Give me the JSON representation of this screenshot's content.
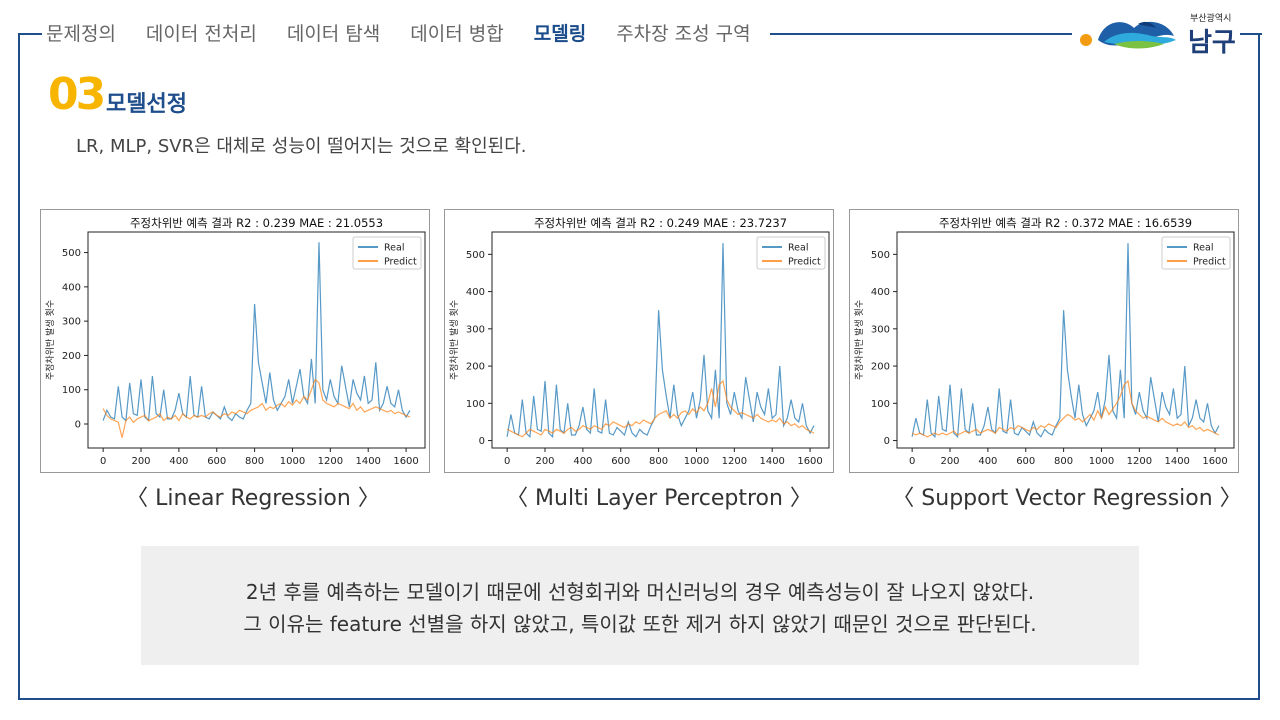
{
  "nav": {
    "items": [
      "문제정의",
      "데이터 전처리",
      "데이터 탐색",
      "데이터 병합",
      "모델링",
      "주차장 조성 구역"
    ],
    "active_index": 4
  },
  "logo": {
    "sub": "부산광역시",
    "main": "남구"
  },
  "section": {
    "number": "03",
    "title": "모델선정",
    "subtitle": "LR, MLP, SVR은 대체로 성능이 떨어지는 것으로 확인된다."
  },
  "colors": {
    "accent_blue": "#1f4e8c",
    "accent_yellow": "#f7b500",
    "real": "#1f77b4",
    "predict": "#ff7f0e"
  },
  "chart_data": [
    {
      "type": "line",
      "title": "주정차위반 예측 결과    R2 : 0.239    MAE : 21.0553",
      "ylabel": "주정차위반 발생 횟수",
      "xlabel": "",
      "caption": "〈 Linear Regression 〉",
      "xlim": [
        -80,
        1700
      ],
      "ylim": [
        -70,
        560
      ],
      "xticks": [
        0,
        200,
        400,
        600,
        800,
        1000,
        1200,
        1400,
        1600
      ],
      "yticks": [
        0,
        100,
        200,
        300,
        400,
        500
      ],
      "legend": [
        "Real",
        "Predict"
      ],
      "legend_position": "top-right",
      "series": [
        {
          "name": "Real",
          "x": [
            0,
            20,
            40,
            60,
            80,
            100,
            120,
            140,
            160,
            180,
            200,
            220,
            240,
            260,
            280,
            300,
            320,
            340,
            360,
            380,
            400,
            420,
            440,
            460,
            480,
            500,
            520,
            540,
            560,
            580,
            600,
            620,
            640,
            660,
            680,
            700,
            720,
            740,
            760,
            780,
            800,
            820,
            840,
            860,
            880,
            900,
            920,
            940,
            960,
            980,
            1000,
            1020,
            1040,
            1060,
            1080,
            1100,
            1120,
            1140,
            1160,
            1180,
            1200,
            1220,
            1240,
            1260,
            1280,
            1300,
            1320,
            1340,
            1360,
            1380,
            1400,
            1420,
            1440,
            1460,
            1480,
            1500,
            1520,
            1540,
            1560,
            1580,
            1600,
            1620
          ],
          "values": [
            10,
            40,
            20,
            15,
            110,
            20,
            10,
            120,
            30,
            25,
            130,
            20,
            10,
            140,
            30,
            20,
            100,
            15,
            15,
            40,
            90,
            30,
            20,
            140,
            25,
            20,
            110,
            20,
            15,
            35,
            25,
            15,
            50,
            20,
            10,
            30,
            20,
            15,
            40,
            60,
            350,
            180,
            120,
            60,
            150,
            70,
            40,
            60,
            80,
            130,
            60,
            110,
            160,
            80,
            60,
            190,
            60,
            530,
            100,
            70,
            130,
            80,
            60,
            170,
            110,
            50,
            130,
            90,
            70,
            140,
            60,
            70,
            180,
            40,
            60,
            110,
            60,
            50,
            100,
            40,
            20,
            40
          ]
        },
        {
          "name": "Predict",
          "x": [
            0,
            20,
            40,
            60,
            80,
            100,
            120,
            140,
            160,
            180,
            200,
            220,
            240,
            260,
            280,
            300,
            320,
            340,
            360,
            380,
            400,
            420,
            440,
            460,
            480,
            500,
            520,
            540,
            560,
            580,
            600,
            620,
            640,
            660,
            680,
            700,
            720,
            740,
            760,
            780,
            800,
            820,
            840,
            860,
            880,
            900,
            920,
            940,
            960,
            980,
            1000,
            1020,
            1040,
            1060,
            1080,
            1100,
            1120,
            1140,
            1160,
            1180,
            1200,
            1220,
            1240,
            1260,
            1280,
            1300,
            1320,
            1340,
            1360,
            1380,
            1400,
            1420,
            1440,
            1460,
            1480,
            1500,
            1520,
            1540,
            1560,
            1580,
            1600,
            1620
          ],
          "values": [
            45,
            25,
            15,
            10,
            5,
            -40,
            10,
            20,
            5,
            15,
            20,
            25,
            10,
            15,
            20,
            30,
            10,
            20,
            15,
            25,
            10,
            30,
            20,
            15,
            25,
            20,
            25,
            20,
            30,
            35,
            25,
            20,
            30,
            25,
            35,
            30,
            40,
            35,
            30,
            40,
            45,
            50,
            60,
            40,
            50,
            45,
            55,
            60,
            50,
            65,
            55,
            70,
            60,
            80,
            70,
            100,
            130,
            120,
            70,
            60,
            55,
            50,
            60,
            55,
            50,
            45,
            60,
            40,
            50,
            35,
            40,
            45,
            50,
            45,
            40,
            35,
            40,
            30,
            35,
            30,
            25,
            20
          ]
        }
      ]
    },
    {
      "type": "line",
      "title": "주정차위반 예측 결과    R2 : 0.249    MAE : 23.7237",
      "ylabel": "주정차위반 발생 횟수",
      "xlabel": "",
      "caption": "〈 Multi Layer Perceptron 〉",
      "xlim": [
        -80,
        1700
      ],
      "ylim": [
        -20,
        560
      ],
      "xticks": [
        0,
        200,
        400,
        600,
        800,
        1000,
        1200,
        1400,
        1600
      ],
      "yticks": [
        0,
        100,
        200,
        300,
        400,
        500
      ],
      "legend": [
        "Real",
        "Predict"
      ],
      "legend_position": "top-right",
      "series": [
        {
          "name": "Real",
          "x": [
            0,
            20,
            40,
            60,
            80,
            100,
            120,
            140,
            160,
            180,
            200,
            220,
            240,
            260,
            280,
            300,
            320,
            340,
            360,
            380,
            400,
            420,
            440,
            460,
            480,
            500,
            520,
            540,
            560,
            580,
            600,
            620,
            640,
            660,
            680,
            700,
            720,
            740,
            760,
            780,
            800,
            820,
            840,
            860,
            880,
            900,
            920,
            940,
            960,
            980,
            1000,
            1020,
            1040,
            1060,
            1080,
            1100,
            1120,
            1140,
            1160,
            1180,
            1200,
            1220,
            1240,
            1260,
            1280,
            1300,
            1320,
            1340,
            1360,
            1380,
            1400,
            1420,
            1440,
            1460,
            1480,
            1500,
            1520,
            1540,
            1560,
            1580,
            1600,
            1620
          ],
          "values": [
            10,
            70,
            20,
            15,
            110,
            20,
            10,
            120,
            30,
            25,
            160,
            20,
            10,
            150,
            30,
            20,
            100,
            15,
            15,
            40,
            90,
            30,
            20,
            140,
            25,
            20,
            110,
            20,
            15,
            35,
            25,
            15,
            50,
            20,
            10,
            30,
            20,
            15,
            40,
            60,
            350,
            190,
            120,
            60,
            150,
            70,
            40,
            60,
            80,
            130,
            60,
            110,
            230,
            80,
            60,
            190,
            60,
            530,
            100,
            70,
            130,
            80,
            60,
            170,
            110,
            50,
            130,
            90,
            70,
            140,
            60,
            70,
            200,
            40,
            60,
            110,
            60,
            50,
            100,
            40,
            20,
            40
          ]
        },
        {
          "name": "Predict",
          "x": [
            0,
            20,
            40,
            60,
            80,
            100,
            120,
            140,
            160,
            180,
            200,
            220,
            240,
            260,
            280,
            300,
            320,
            340,
            360,
            380,
            400,
            420,
            440,
            460,
            480,
            500,
            520,
            540,
            560,
            580,
            600,
            620,
            640,
            660,
            680,
            700,
            720,
            740,
            760,
            780,
            800,
            820,
            840,
            860,
            880,
            900,
            920,
            940,
            960,
            980,
            1000,
            1020,
            1040,
            1060,
            1080,
            1100,
            1120,
            1140,
            1160,
            1180,
            1200,
            1220,
            1240,
            1260,
            1280,
            1300,
            1320,
            1340,
            1360,
            1380,
            1400,
            1420,
            1440,
            1460,
            1480,
            1500,
            1520,
            1540,
            1560,
            1580,
            1600,
            1620
          ],
          "values": [
            30,
            25,
            20,
            15,
            10,
            20,
            30,
            25,
            20,
            15,
            30,
            25,
            20,
            30,
            25,
            20,
            30,
            35,
            25,
            30,
            40,
            35,
            30,
            40,
            35,
            30,
            45,
            40,
            50,
            45,
            40,
            35,
            45,
            40,
            50,
            45,
            55,
            50,
            45,
            60,
            70,
            75,
            80,
            60,
            70,
            60,
            75,
            80,
            70,
            85,
            75,
            90,
            80,
            100,
            140,
            90,
            150,
            160,
            110,
            90,
            80,
            70,
            75,
            70,
            65,
            60,
            70,
            60,
            55,
            50,
            55,
            50,
            60,
            45,
            50,
            40,
            45,
            35,
            40,
            30,
            25,
            20
          ]
        }
      ]
    },
    {
      "type": "line",
      "title": "주정차위반 예측 결과    R2 : 0.372    MAE : 16.6539",
      "ylabel": "주정차위반 발생 횟수",
      "xlabel": "",
      "caption": "〈 Support Vector Regression 〉",
      "xlim": [
        -80,
        1700
      ],
      "ylim": [
        -20,
        560
      ],
      "xticks": [
        0,
        200,
        400,
        600,
        800,
        1000,
        1200,
        1400,
        1600
      ],
      "yticks": [
        0,
        100,
        200,
        300,
        400,
        500
      ],
      "legend": [
        "Real",
        "Predict"
      ],
      "legend_position": "top-right",
      "series": [
        {
          "name": "Real",
          "x": [
            0,
            20,
            40,
            60,
            80,
            100,
            120,
            140,
            160,
            180,
            200,
            220,
            240,
            260,
            280,
            300,
            320,
            340,
            360,
            380,
            400,
            420,
            440,
            460,
            480,
            500,
            520,
            540,
            560,
            580,
            600,
            620,
            640,
            660,
            680,
            700,
            720,
            740,
            760,
            780,
            800,
            820,
            840,
            860,
            880,
            900,
            920,
            940,
            960,
            980,
            1000,
            1020,
            1040,
            1060,
            1080,
            1100,
            1120,
            1140,
            1160,
            1180,
            1200,
            1220,
            1240,
            1260,
            1280,
            1300,
            1320,
            1340,
            1360,
            1380,
            1400,
            1420,
            1440,
            1460,
            1480,
            1500,
            1520,
            1540,
            1560,
            1580,
            1600,
            1620
          ],
          "values": [
            10,
            60,
            20,
            15,
            110,
            20,
            10,
            120,
            30,
            25,
            150,
            20,
            10,
            140,
            30,
            20,
            100,
            15,
            15,
            40,
            90,
            30,
            20,
            140,
            25,
            20,
            110,
            20,
            15,
            35,
            25,
            15,
            50,
            20,
            10,
            30,
            20,
            15,
            40,
            60,
            350,
            190,
            120,
            60,
            150,
            70,
            40,
            60,
            80,
            130,
            60,
            110,
            230,
            80,
            60,
            190,
            60,
            530,
            100,
            70,
            130,
            80,
            60,
            170,
            110,
            50,
            130,
            90,
            70,
            140,
            60,
            70,
            200,
            40,
            60,
            110,
            60,
            50,
            100,
            40,
            20,
            40
          ]
        },
        {
          "name": "Predict",
          "x": [
            0,
            20,
            40,
            60,
            80,
            100,
            120,
            140,
            160,
            180,
            200,
            220,
            240,
            260,
            280,
            300,
            320,
            340,
            360,
            380,
            400,
            420,
            440,
            460,
            480,
            500,
            520,
            540,
            560,
            580,
            600,
            620,
            640,
            660,
            680,
            700,
            720,
            740,
            760,
            780,
            800,
            820,
            840,
            860,
            880,
            900,
            920,
            940,
            960,
            980,
            1000,
            1020,
            1040,
            1060,
            1080,
            1100,
            1120,
            1140,
            1160,
            1180,
            1200,
            1220,
            1240,
            1260,
            1280,
            1300,
            1320,
            1340,
            1360,
            1380,
            1400,
            1420,
            1440,
            1460,
            1480,
            1500,
            1520,
            1540,
            1560,
            1580,
            1600,
            1620
          ],
          "values": [
            20,
            15,
            20,
            15,
            10,
            15,
            20,
            15,
            20,
            15,
            20,
            25,
            15,
            20,
            25,
            20,
            25,
            30,
            20,
            25,
            30,
            25,
            20,
            35,
            30,
            25,
            35,
            30,
            40,
            35,
            30,
            25,
            35,
            30,
            40,
            35,
            45,
            40,
            35,
            50,
            60,
            70,
            65,
            55,
            60,
            50,
            60,
            70,
            55,
            80,
            60,
            90,
            70,
            85,
            100,
            120,
            150,
            160,
            100,
            80,
            70,
            60,
            65,
            60,
            55,
            50,
            60,
            50,
            45,
            40,
            45,
            40,
            50,
            35,
            40,
            30,
            35,
            25,
            30,
            25,
            20,
            15
          ]
        }
      ]
    }
  ],
  "note": {
    "line1": "2년 후를 예측하는 모델이기 때문에 선형회귀와 머신러닝의 경우 예측성능이 잘 나오지 않았다.",
    "line2": "그 이유는 feature 선별을 하지 않았고, 특이값 또한 제거 하지 않았기 때문인 것으로 판단된다."
  }
}
